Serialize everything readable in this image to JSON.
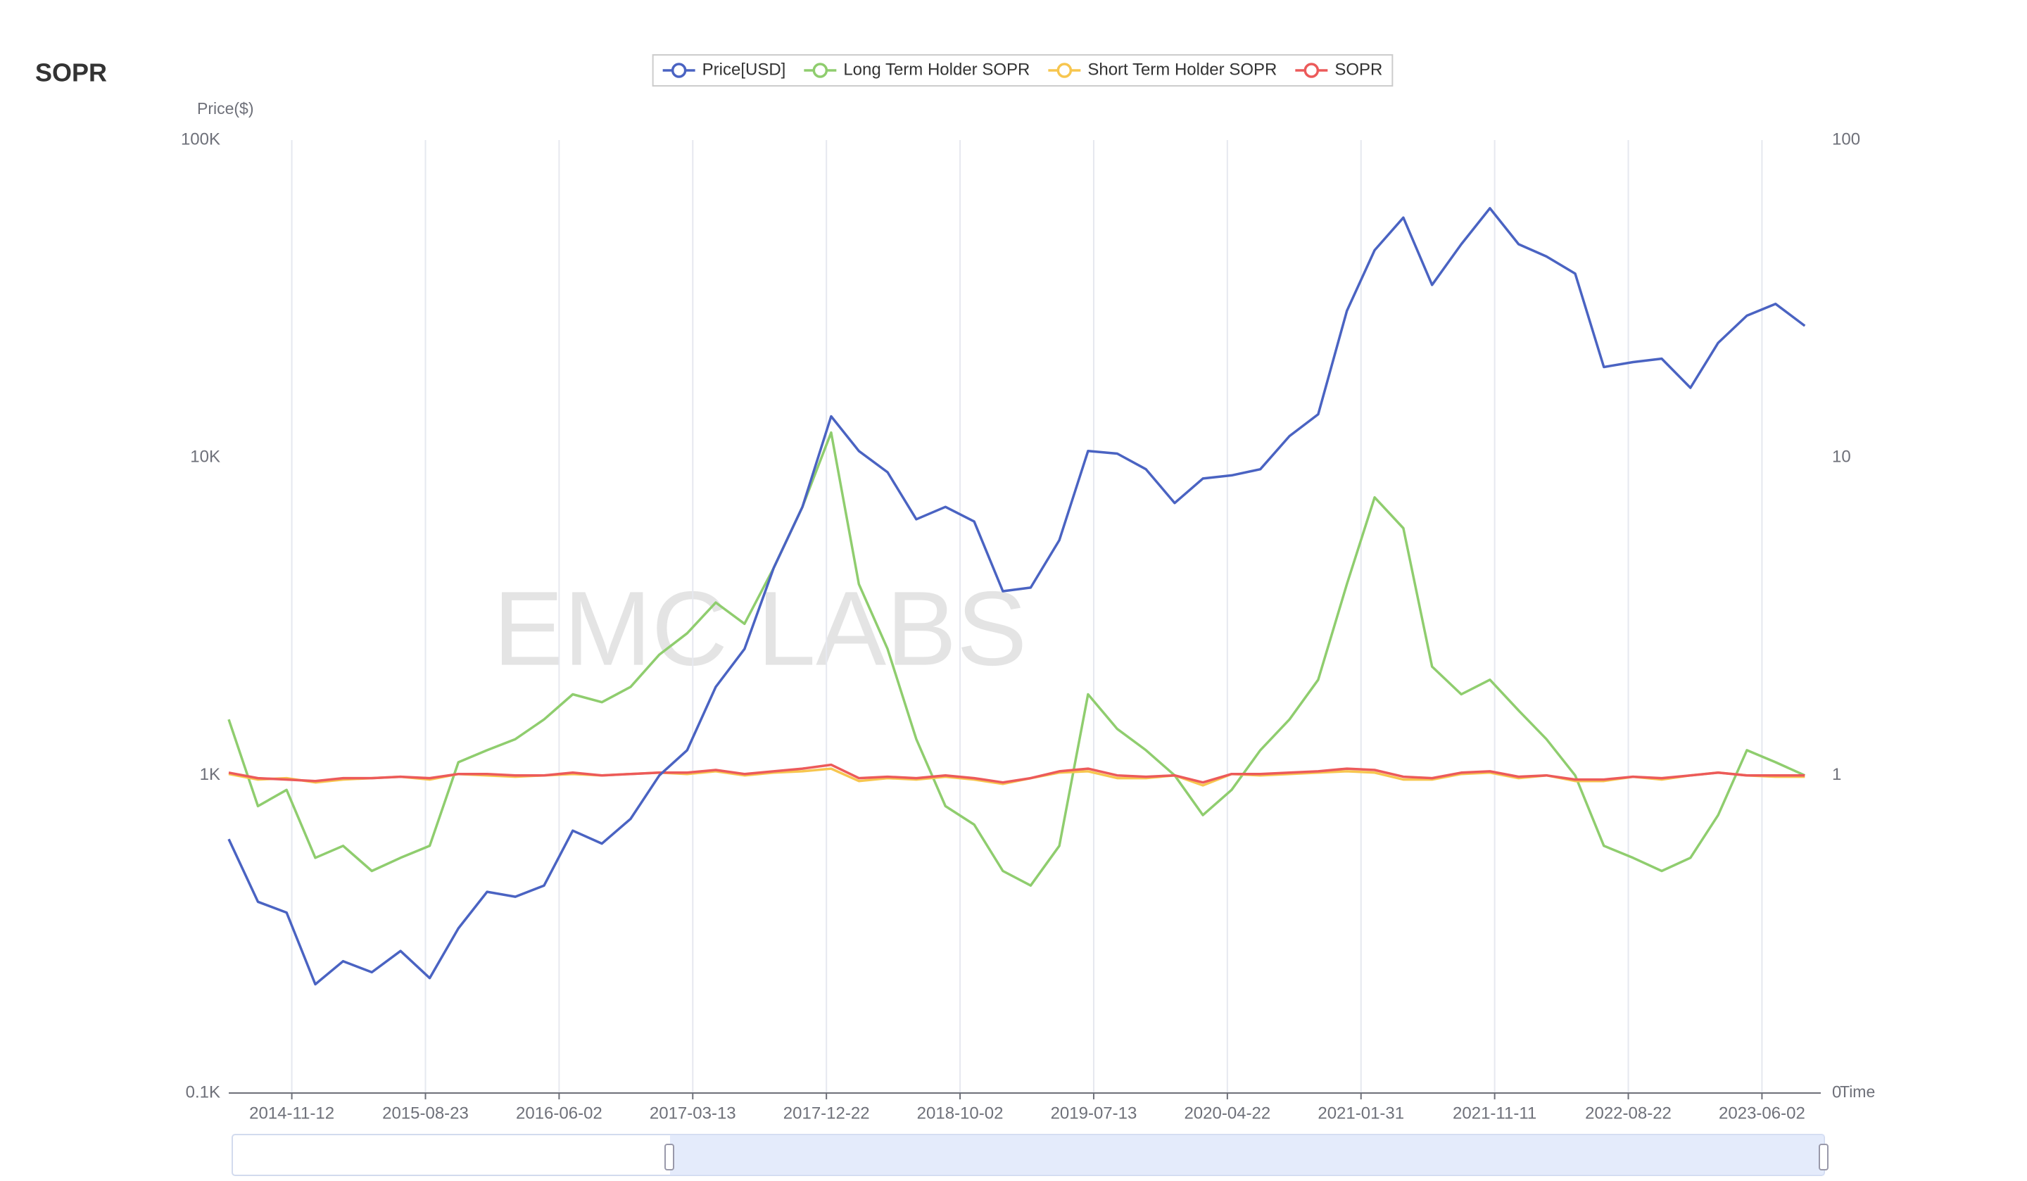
{
  "chart_data": {
    "type": "line",
    "title": "SOPR",
    "watermark": "EMC LABS",
    "y_label": "Price($)",
    "x_label": "Time",
    "log_scale": true,
    "grid": "x",
    "legend": "top",
    "x": [
      "2014-07-01",
      "2014-09-01",
      "2014-11-01",
      "2015-01-01",
      "2015-03-01",
      "2015-05-01",
      "2015-07-01",
      "2015-09-01",
      "2015-11-01",
      "2016-01-01",
      "2016-03-01",
      "2016-05-01",
      "2016-07-01",
      "2016-09-01",
      "2016-11-01",
      "2017-01-01",
      "2017-03-01",
      "2017-05-01",
      "2017-07-01",
      "2017-09-01",
      "2017-11-01",
      "2018-01-01",
      "2018-03-01",
      "2018-05-01",
      "2018-07-01",
      "2018-09-01",
      "2018-11-01",
      "2019-01-01",
      "2019-03-01",
      "2019-05-01",
      "2019-07-01",
      "2019-09-01",
      "2019-11-01",
      "2020-01-01",
      "2020-03-01",
      "2020-05-01",
      "2020-07-01",
      "2020-09-01",
      "2020-11-01",
      "2021-01-01",
      "2021-03-01",
      "2021-05-01",
      "2021-07-01",
      "2021-09-01",
      "2021-11-01",
      "2022-01-01",
      "2022-03-01",
      "2022-05-01",
      "2022-07-01",
      "2022-09-01",
      "2022-11-01",
      "2023-01-01",
      "2023-03-01",
      "2023-05-01",
      "2023-07-01",
      "2023-09-01"
    ],
    "xlim": [
      "2014-07-01",
      "2023-10-05"
    ],
    "xticks": [
      "2014-11-12",
      "2015-08-23",
      "2016-06-02",
      "2017-03-13",
      "2017-12-22",
      "2018-10-02",
      "2019-07-13",
      "2020-04-22",
      "2021-01-31",
      "2021-11-11",
      "2022-08-22",
      "2023-06-02"
    ],
    "ylim": [
      100,
      100000
    ],
    "yticks": [
      {
        "value": 100,
        "label": "0.1K"
      },
      {
        "value": 1000,
        "label": "1K"
      },
      {
        "value": 10000,
        "label": "10K"
      },
      {
        "value": 100000,
        "label": "100K"
      }
    ],
    "y2lim": [
      0.1,
      100
    ],
    "y2ticks": [
      {
        "value": 0.1,
        "label": "0"
      },
      1,
      10,
      100
    ],
    "series": [
      {
        "name": "Price[USD]",
        "color": "#4a63c2",
        "values": [
          630,
          400,
          370,
          220,
          260,
          240,
          280,
          230,
          330,
          430,
          415,
          450,
          670,
          610,
          730,
          1000,
          1200,
          1900,
          2500,
          4500,
          7000,
          13500,
          10500,
          9000,
          6400,
          7000,
          6300,
          3800,
          3900,
          5500,
          10500,
          10300,
          9200,
          7200,
          8600,
          8800,
          9200,
          11700,
          13700,
          29000,
          45000,
          57000,
          35000,
          47000,
          61000,
          47000,
          43000,
          38000,
          19300,
          20000,
          20500,
          16600,
          23000,
          28000,
          30500,
          26000
        ]
      },
      {
        "name": "Long Term Holder SOPR",
        "color": "#8fcd6e",
        "axis": "y2",
        "values": [
          1.5,
          0.8,
          0.9,
          0.55,
          0.6,
          0.5,
          0.55,
          0.6,
          1.1,
          1.2,
          1.3,
          1.5,
          1.8,
          1.7,
          1.9,
          2.4,
          2.8,
          3.5,
          3.0,
          4.5,
          7,
          12,
          4,
          2.5,
          1.3,
          0.8,
          0.7,
          0.5,
          0.45,
          0.6,
          1.8,
          1.4,
          1.2,
          1.0,
          0.75,
          0.9,
          1.2,
          1.5,
          2.0,
          4.0,
          7.5,
          6.0,
          2.2,
          1.8,
          2.0,
          1.6,
          1.3,
          1.0,
          0.6,
          0.55,
          0.5,
          0.55,
          0.75,
          1.2,
          1.1,
          1.0
        ]
      },
      {
        "name": "Short Term Holder SOPR",
        "color": "#f7c64f",
        "axis": "y2",
        "values": [
          1.01,
          0.97,
          0.98,
          0.95,
          0.97,
          0.98,
          0.99,
          0.97,
          1.01,
          1.0,
          0.99,
          1.0,
          1.01,
          1.0,
          1.01,
          1.02,
          1.01,
          1.03,
          1.0,
          1.02,
          1.03,
          1.05,
          0.96,
          0.98,
          0.97,
          0.99,
          0.97,
          0.94,
          0.98,
          1.02,
          1.03,
          0.98,
          0.98,
          1.0,
          0.93,
          1.01,
          1.0,
          1.01,
          1.02,
          1.03,
          1.02,
          0.97,
          0.97,
          1.01,
          1.02,
          0.98,
          1.0,
          0.96,
          0.96,
          0.99,
          0.97,
          1.0,
          1.02,
          1.0,
          0.99,
          0.99
        ]
      },
      {
        "name": "SOPR",
        "color": "#ec5a5a",
        "axis": "y2",
        "values": [
          1.02,
          0.98,
          0.97,
          0.96,
          0.98,
          0.98,
          0.99,
          0.98,
          1.01,
          1.01,
          1.0,
          1.0,
          1.02,
          1.0,
          1.01,
          1.02,
          1.02,
          1.04,
          1.01,
          1.03,
          1.05,
          1.08,
          0.98,
          0.99,
          0.98,
          1.0,
          0.98,
          0.95,
          0.98,
          1.03,
          1.05,
          1.0,
          0.99,
          1.0,
          0.95,
          1.01,
          1.01,
          1.02,
          1.03,
          1.05,
          1.04,
          0.99,
          0.98,
          1.02,
          1.03,
          0.99,
          1.0,
          0.97,
          0.97,
          0.99,
          0.98,
          1.0,
          1.02,
          1.0,
          1.0,
          1.0
        ]
      }
    ]
  }
}
